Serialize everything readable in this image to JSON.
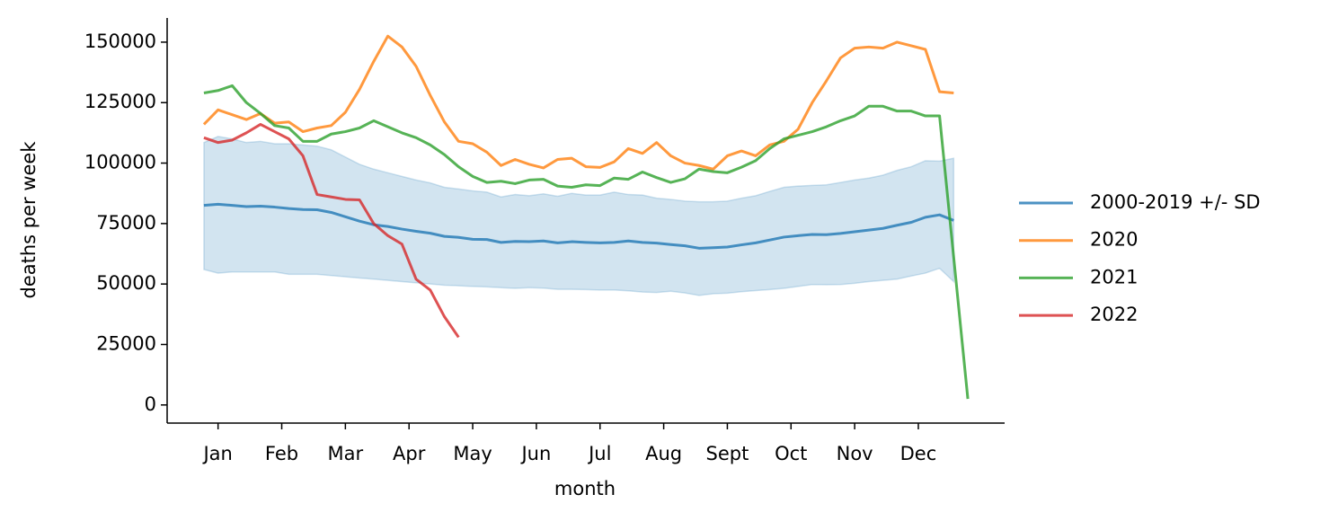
{
  "chart_data": {
    "type": "line",
    "x_label": "month",
    "y_label": "deaths per week",
    "x": [
      1,
      2,
      3,
      4,
      5,
      6,
      7,
      8,
      9,
      10,
      11,
      12,
      13,
      14,
      15,
      16,
      17,
      18,
      19,
      20,
      21,
      22,
      23,
      24,
      25,
      26,
      27,
      28,
      29,
      30,
      31,
      32,
      33,
      34,
      35,
      36,
      37,
      38,
      39,
      40,
      41,
      42,
      43,
      44,
      45,
      46,
      47,
      48,
      49,
      50,
      51,
      52,
      53,
      54,
      55
    ],
    "xlim": [
      -1.6,
      57.6
    ],
    "xticks": [
      {
        "value": 2,
        "label": "Jan"
      },
      {
        "value": 6.5,
        "label": "Feb"
      },
      {
        "value": 11,
        "label": "Mar"
      },
      {
        "value": 15.5,
        "label": "Apr"
      },
      {
        "value": 20,
        "label": "May"
      },
      {
        "value": 24.5,
        "label": "Jun"
      },
      {
        "value": 29,
        "label": "Jul"
      },
      {
        "value": 33.5,
        "label": "Aug"
      },
      {
        "value": 38,
        "label": "Sept"
      },
      {
        "value": 42.5,
        "label": "Oct"
      },
      {
        "value": 47,
        "label": "Nov"
      },
      {
        "value": 51.5,
        "label": "Dec"
      }
    ],
    "ylim": [
      -7500,
      160000
    ],
    "yticks": [
      0,
      25000,
      50000,
      75000,
      100000,
      125000,
      150000
    ],
    "legend": "right",
    "series": [
      {
        "name": "2000-2019 +/- SD",
        "color": "#1f77b4",
        "values": [
          82500,
          83000,
          82500,
          82000,
          82200,
          81800,
          81200,
          80800,
          80700,
          79600,
          77800,
          76000,
          74500,
          73800,
          72700,
          71800,
          71000,
          69700,
          69300,
          68500,
          68400,
          67200,
          67600,
          67500,
          67800,
          67000,
          67500,
          67200,
          67000,
          67200,
          67800,
          67200,
          66900,
          66300,
          65800,
          64800,
          65000,
          65300,
          66200,
          67000,
          68200,
          69400,
          70000,
          70500,
          70400,
          70900,
          71600,
          72300,
          73000,
          74300,
          75500,
          77600,
          78600,
          76300,
          null
        ],
        "band_lower": [
          56000,
          54500,
          55000,
          55000,
          55000,
          55000,
          54000,
          54000,
          54000,
          53500,
          53000,
          52500,
          52000,
          51500,
          51000,
          50500,
          50000,
          49500,
          49300,
          49000,
          48800,
          48500,
          48200,
          48500,
          48300,
          47800,
          47800,
          47700,
          47500,
          47500,
          47200,
          46700,
          46500,
          47000,
          46300,
          45300,
          46000,
          46200,
          46800,
          47300,
          47700,
          48200,
          49000,
          49800,
          49700,
          49800,
          50300,
          51000,
          51500,
          52000,
          53300,
          54500,
          56500,
          51000,
          null
        ],
        "band_upper": [
          108500,
          111000,
          110000,
          108500,
          109000,
          108000,
          108000,
          107500,
          107000,
          105500,
          102500,
          99500,
          97500,
          96000,
          94500,
          93000,
          91800,
          90000,
          89300,
          88500,
          88000,
          86000,
          87000,
          86500,
          87300,
          86300,
          87500,
          86800,
          86800,
          88000,
          87000,
          86800,
          85500,
          85000,
          84300,
          84000,
          84000,
          84300,
          85500,
          86500,
          88300,
          90000,
          90500,
          90800,
          91000,
          92000,
          93000,
          93800,
          95000,
          97000,
          98500,
          101000,
          100800,
          102000,
          null
        ]
      },
      {
        "name": "2020",
        "color": "#ff7f0e",
        "values": [
          116000,
          122000,
          120000,
          118000,
          120500,
          116500,
          117000,
          113000,
          114500,
          115500,
          121000,
          130500,
          142000,
          152500,
          148000,
          140000,
          128000,
          117000,
          109000,
          108000,
          104500,
          99000,
          101500,
          99500,
          98000,
          101500,
          102000,
          98500,
          98200,
          100500,
          106000,
          104000,
          108500,
          103000,
          100000,
          99000,
          97500,
          103000,
          105000,
          103000,
          107500,
          109000,
          114000,
          125000,
          134000,
          143500,
          147500,
          148000,
          147500,
          150000,
          148500,
          147000,
          129500,
          129000,
          null
        ]
      },
      {
        "name": "2021",
        "color": "#2ca02c",
        "values": [
          129000,
          130000,
          132000,
          125000,
          120500,
          115500,
          114500,
          109000,
          109000,
          112000,
          113000,
          114500,
          117500,
          115000,
          112500,
          110500,
          107500,
          103500,
          98500,
          94500,
          92000,
          92500,
          91500,
          93000,
          93300,
          90500,
          90000,
          91000,
          90700,
          93800,
          93300,
          96300,
          94000,
          92000,
          93500,
          97500,
          96500,
          96000,
          98300,
          101000,
          106000,
          110000,
          111500,
          113000,
          115000,
          117500,
          119500,
          123500,
          123500,
          121500,
          121500,
          119500,
          119500,
          61000,
          2500
        ]
      },
      {
        "name": "2022",
        "color": "#d62728",
        "values": [
          110500,
          108500,
          109500,
          112500,
          116000,
          113000,
          110000,
          103000,
          87000,
          86000,
          85000,
          84800,
          75000,
          70000,
          66500,
          52000,
          47500,
          36500,
          28000,
          null,
          null,
          null,
          null,
          null,
          null,
          null,
          null,
          null,
          null,
          null,
          null,
          null,
          null,
          null,
          null,
          null,
          null,
          null,
          null,
          null,
          null,
          null,
          null,
          null,
          null,
          null,
          null,
          null,
          null,
          null,
          null,
          null,
          null,
          null,
          null
        ]
      }
    ]
  }
}
